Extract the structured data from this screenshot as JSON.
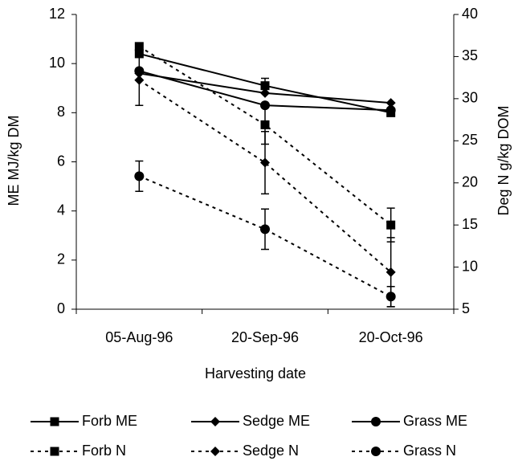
{
  "chart_data": {
    "type": "line",
    "x_label": "Harvesting date",
    "y_label": "ME MJ/kg DM",
    "y2_label": "Deg N g/kg DOM",
    "categories": [
      "05-Aug-96",
      "20-Sep-96",
      "20-Oct-96"
    ],
    "ylim": [
      0,
      12
    ],
    "yticks": [
      0,
      2,
      4,
      6,
      8,
      10,
      12
    ],
    "y2lim": [
      5,
      40
    ],
    "y2ticks": [
      5,
      10,
      15,
      20,
      25,
      30,
      35,
      40
    ],
    "grid": false,
    "series": [
      {
        "name": "Forb ME",
        "color": "#000000",
        "marker": "square",
        "dash": false,
        "values": [
          10.4,
          9.1,
          8.0
        ],
        "errors": [
          null,
          0.3,
          0.15
        ]
      },
      {
        "name": "Sedge ME",
        "color": "#000000",
        "marker": "diamond",
        "dash": false,
        "values": [
          9.6,
          8.8,
          8.4
        ],
        "errors": [
          null,
          null,
          null
        ]
      },
      {
        "name": "Grass ME",
        "color": "#000000",
        "marker": "circle",
        "dash": false,
        "values": [
          9.7,
          8.3,
          8.1
        ],
        "errors": [
          null,
          null,
          null
        ]
      },
      {
        "name": "Forb N",
        "color": "#000000",
        "marker": "square",
        "dash": true,
        "axis": "y2",
        "values": [
          36.2,
          26.9,
          15.0
        ],
        "errors": [
          null,
          2.3,
          2.0
        ]
      },
      {
        "name": "Sedge N",
        "color": "#000000",
        "marker": "diamond",
        "dash": true,
        "axis": "y2",
        "values": [
          32.2,
          22.4,
          9.4
        ],
        "errors": [
          3.0,
          3.7,
          4.1
        ]
      },
      {
        "name": "Grass N",
        "color": "#000000",
        "marker": "circle",
        "dash": true,
        "axis": "y2",
        "values": [
          20.8,
          14.5,
          6.5
        ],
        "errors": [
          1.8,
          2.4,
          1.2
        ]
      }
    ]
  }
}
